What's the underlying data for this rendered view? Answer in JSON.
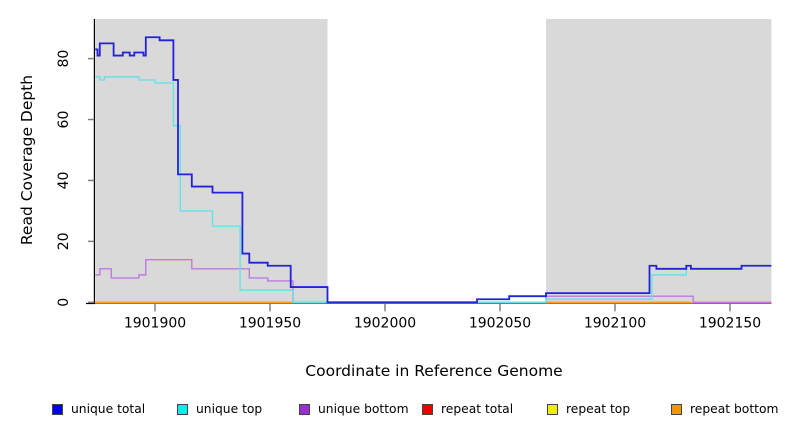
{
  "figure": {
    "xlabel": "Coordinate in Reference Genome",
    "ylabel": "Read Coverage Depth"
  },
  "chart_data": {
    "type": "line",
    "subtype": "step-coverage",
    "title": "",
    "xlabel": "Coordinate in Reference Genome",
    "ylabel": "Read Coverage Depth",
    "xlim": [
      1901874,
      1902168
    ],
    "ylim": [
      0,
      93
    ],
    "x_ticks": [
      1901900,
      1901950,
      1902000,
      1902050,
      1902100,
      1902150
    ],
    "y_ticks": [
      0,
      20,
      40,
      60,
      80
    ],
    "grid": false,
    "background_color": "#ffffff",
    "shaded_regions": {
      "color": "#d9d9d9",
      "coords": [
        [
          1901874,
          1901975
        ],
        [
          1902070,
          1902168
        ]
      ]
    },
    "series": [
      {
        "name": "repeat top",
        "line_color": "#eded00",
        "width": 1.3,
        "segments": [
          {
            "points": [
              [
                1901874,
                0
              ]
            ],
            "end": 1902168
          }
        ]
      },
      {
        "name": "repeat total",
        "line_color": "#e0457b",
        "width": 1.3,
        "segments": [
          {
            "points": [
              [
                1901874,
                0
              ]
            ],
            "end": 1902168
          }
        ]
      },
      {
        "name": "repeat bottom",
        "line_color": "#ff9d1c",
        "width": 1.7,
        "segments": [
          {
            "points": [
              [
                1901874,
                0
              ]
            ],
            "end": 1901960
          },
          {
            "points": [
              [
                1902070,
                0
              ]
            ],
            "end": 1902133
          }
        ]
      },
      {
        "name": "unique bottom",
        "line_color": "#bd7ae0",
        "width": 1.4,
        "segments": [
          {
            "points": [
              [
                1901874,
                9
              ],
              [
                1901876,
                11
              ],
              [
                1901881,
                8
              ],
              [
                1901893,
                9
              ],
              [
                1901896,
                14
              ],
              [
                1901916,
                11
              ],
              [
                1901941,
                8
              ],
              [
                1901949,
                7
              ],
              [
                1901960,
                0
              ],
              [
                1902070,
                2
              ],
              [
                1902134,
                0
              ]
            ],
            "end": 1902168
          }
        ]
      },
      {
        "name": "unique top",
        "line_color": "#66e2ea",
        "width": 1.4,
        "segments": [
          {
            "points": [
              [
                1901874,
                74
              ],
              [
                1901876,
                73
              ],
              [
                1901878,
                74
              ],
              [
                1901893,
                73
              ],
              [
                1901900,
                72
              ],
              [
                1901908,
                58
              ],
              [
                1901911,
                30
              ],
              [
                1901925,
                25
              ],
              [
                1901937,
                4
              ],
              [
                1901960,
                0
              ],
              [
                1902070,
                1
              ],
              [
                1902116,
                9
              ],
              [
                1902131,
                12
              ],
              [
                1902133,
                11
              ],
              [
                1902155,
                12
              ]
            ],
            "end": 1902168
          }
        ]
      },
      {
        "name": "unique total",
        "line_color": "#2222d8",
        "width": 1.8,
        "segments": [
          {
            "points": [
              [
                1901874,
                83
              ],
              [
                1901875,
                81
              ],
              [
                1901876,
                85
              ],
              [
                1901882,
                81
              ],
              [
                1901886,
                82
              ],
              [
                1901889,
                81
              ],
              [
                1901891,
                82
              ],
              [
                1901895,
                81
              ],
              [
                1901896,
                87
              ],
              [
                1901902,
                86
              ],
              [
                1901908,
                73
              ],
              [
                1901910,
                42
              ],
              [
                1901916,
                38
              ],
              [
                1901925,
                36
              ],
              [
                1901938,
                16
              ],
              [
                1901941,
                13
              ],
              [
                1901949,
                12
              ],
              [
                1901959,
                5
              ],
              [
                1901975,
                0
              ],
              [
                1902040,
                1
              ],
              [
                1902054,
                2
              ],
              [
                1902070,
                3
              ],
              [
                1902115,
                12
              ],
              [
                1902118,
                11
              ],
              [
                1902131,
                12
              ],
              [
                1902133,
                11
              ],
              [
                1902155,
                12
              ]
            ],
            "end": 1902168
          }
        ]
      }
    ],
    "legend": {
      "position": "bottom",
      "items": [
        {
          "label": "unique total",
          "color": "#0000ee"
        },
        {
          "label": "unique top",
          "color": "#00eeee"
        },
        {
          "label": "unique bottom",
          "color": "#9932cc"
        },
        {
          "label": "repeat total",
          "color": "#ee0000"
        },
        {
          "label": "repeat top",
          "color": "#eeee00"
        },
        {
          "label": "repeat bottom",
          "color": "#ee9900"
        }
      ]
    },
    "axis": {
      "axis_color": "#000000",
      "tick_color": "#808080",
      "tick_label_size": 14,
      "y_tick_labels_rotated": true
    }
  }
}
